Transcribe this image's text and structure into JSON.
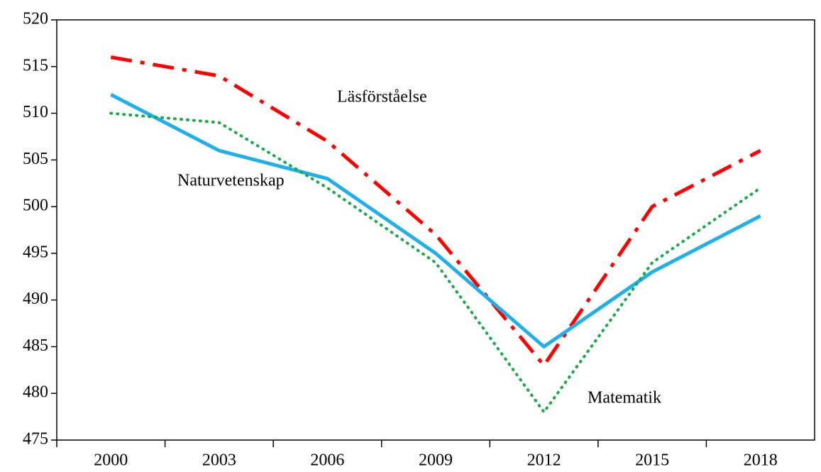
{
  "chart_data": {
    "type": "line",
    "categories": [
      "2000",
      "2003",
      "2006",
      "2009",
      "2012",
      "2015",
      "2018"
    ],
    "series": [
      {
        "name": "Läsförståelse",
        "color": "#ff0000",
        "style": "dashdot",
        "values": [
          516,
          514,
          507,
          497,
          483,
          500,
          506
        ]
      },
      {
        "name": "Naturvetenskap",
        "color": "#1fb0ea",
        "style": "solid",
        "values": [
          512,
          506,
          503,
          495,
          485,
          493,
          499
        ]
      },
      {
        "name": "Matematik",
        "color": "#19a84a",
        "style": "dotted",
        "values": [
          510,
          509,
          502,
          494,
          478,
          494,
          502
        ]
      }
    ],
    "ylim": [
      475,
      520
    ],
    "yticks": [
      475,
      480,
      485,
      490,
      495,
      500,
      505,
      510,
      515,
      520
    ],
    "grid": false
  }
}
